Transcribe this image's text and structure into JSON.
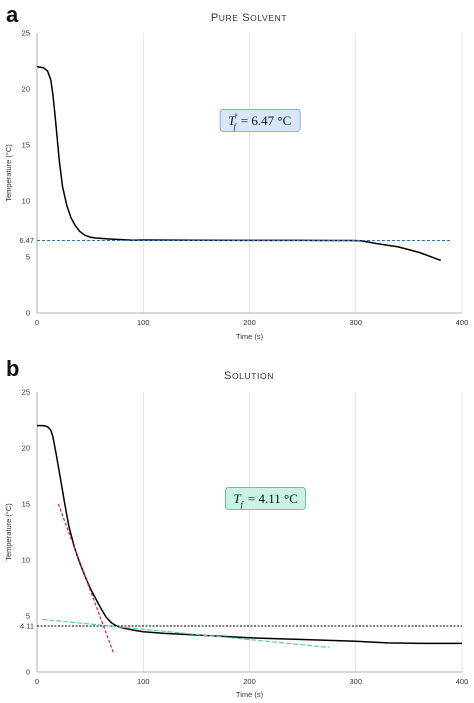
{
  "chart_data": [
    {
      "panel": "a",
      "type": "line",
      "title": "Pure Solvent",
      "xlabel": "Time (s)",
      "ylabel": "Temperature (°C)",
      "xlim": [
        0,
        400
      ],
      "ylim": [
        0,
        25
      ],
      "xticks": [
        0,
        100,
        200,
        300,
        400
      ],
      "yticks": [
        0,
        5,
        10,
        15,
        20,
        25
      ],
      "extra_ytick": "6.47",
      "grid": "vertical",
      "annotation": {
        "symbol": "T",
        "subscript": "f",
        "superscript": "°",
        "value": "= 6.47 °C",
        "x": 210,
        "y": 17.2,
        "fill": "#d7e7f7",
        "stroke": "#6f9ccc"
      },
      "series": [
        {
          "kind": "curve",
          "color": "#000000",
          "x": [
            0,
            6,
            10,
            13,
            15,
            17,
            19,
            21,
            24,
            28,
            32,
            36,
            40,
            45,
            50,
            55,
            60,
            70,
            80,
            90,
            100,
            150,
            200,
            250,
            280,
            295,
            305,
            320,
            340,
            360,
            380
          ],
          "y": [
            22.0,
            21.9,
            21.6,
            20.8,
            19.5,
            17.6,
            15.6,
            13.6,
            11.3,
            9.6,
            8.5,
            7.8,
            7.3,
            6.95,
            6.78,
            6.7,
            6.66,
            6.6,
            6.55,
            6.5,
            6.52,
            6.5,
            6.48,
            6.48,
            6.47,
            6.47,
            6.45,
            6.2,
            5.9,
            5.4,
            4.7
          ]
        },
        {
          "kind": "reference",
          "color": "#2e75b6",
          "dash": "3,2",
          "x": [
            0,
            390
          ],
          "y": [
            6.47,
            6.47
          ]
        }
      ]
    },
    {
      "panel": "b",
      "type": "line",
      "title": "Solution",
      "xlabel": "Time (s)",
      "ylabel": "Temperature (°C)",
      "xlim": [
        0,
        400
      ],
      "ylim": [
        0,
        25
      ],
      "xticks": [
        0,
        100,
        200,
        300,
        400
      ],
      "yticks": [
        0,
        5,
        10,
        15,
        20,
        25
      ],
      "extra_ytick": "4.11",
      "grid": "vertical",
      "annotation": {
        "symbol": "T",
        "subscript": "f",
        "superscript": "",
        "value": "= 4.11 °C",
        "x": 215,
        "y": 15.5,
        "fill": "#c9f3e3",
        "stroke": "#4fae8e"
      },
      "series": [
        {
          "kind": "curve",
          "color": "#000000",
          "x": [
            0,
            6,
            10,
            13,
            15,
            18,
            22,
            26,
            30,
            35,
            40,
            45,
            50,
            55,
            60,
            65,
            70,
            75,
            80,
            90,
            100,
            120,
            150,
            200,
            250,
            300,
            330,
            360,
            400
          ],
          "y": [
            22.0,
            22.0,
            21.9,
            21.6,
            21.0,
            19.5,
            17.3,
            15.1,
            13.0,
            11.2,
            9.8,
            8.6,
            7.5,
            6.6,
            5.7,
            4.9,
            4.4,
            4.1,
            3.95,
            3.75,
            3.6,
            3.45,
            3.3,
            3.05,
            2.9,
            2.75,
            2.6,
            2.55,
            2.55
          ]
        },
        {
          "kind": "reference",
          "color": "#000000",
          "dash": "2,1.5",
          "x": [
            0,
            400
          ],
          "y": [
            4.11,
            4.11
          ]
        },
        {
          "kind": "tangent",
          "color": "#e0194f",
          "dash": "3,2",
          "x": [
            20,
            72
          ],
          "y": [
            15.0,
            1.7
          ]
        },
        {
          "kind": "tangent",
          "color": "#5fcfa8",
          "dash": "5,2",
          "x": [
            5,
            275
          ],
          "y": [
            4.7,
            2.2
          ]
        }
      ]
    }
  ]
}
